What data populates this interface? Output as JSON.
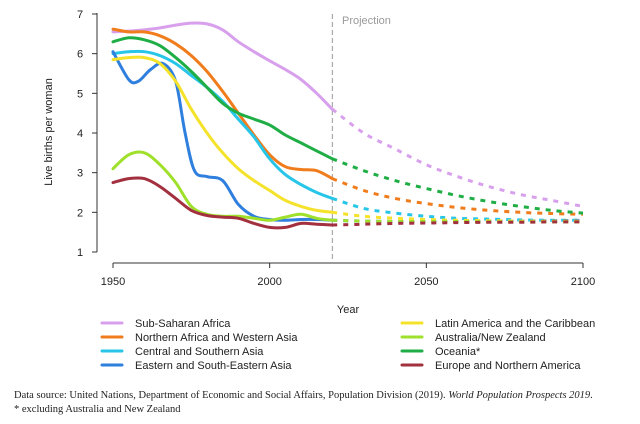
{
  "chart_data": {
    "type": "line",
    "title": "",
    "xlabel": "Year",
    "ylabel": "Live births per woman",
    "xlim": [
      1950,
      2100
    ],
    "ylim": [
      1,
      7
    ],
    "xticks": [
      1950,
      2000,
      2050,
      2100
    ],
    "yticks": [
      1,
      2,
      3,
      4,
      5,
      6,
      7
    ],
    "projection_start": 2020,
    "projection_label": "Projection",
    "series": [
      {
        "name": "Sub-Saharan Africa",
        "color": "#d8a0ec",
        "x": [
          1950,
          1955,
          1960,
          1965,
          1970,
          1975,
          1980,
          1985,
          1990,
          1995,
          2000,
          2005,
          2010,
          2015,
          2020
        ],
        "values": [
          6.55,
          6.57,
          6.6,
          6.65,
          6.72,
          6.77,
          6.75,
          6.6,
          6.3,
          6.05,
          5.82,
          5.6,
          5.35,
          5.0,
          4.6
        ],
        "proj_x": [
          2020,
          2030,
          2040,
          2050,
          2060,
          2070,
          2080,
          2090,
          2100
        ],
        "proj_values": [
          4.6,
          4.0,
          3.6,
          3.2,
          2.9,
          2.65,
          2.45,
          2.3,
          2.15
        ]
      },
      {
        "name": "Northern Africa and Western Asia",
        "color": "#f07c1c",
        "x": [
          1950,
          1955,
          1960,
          1965,
          1970,
          1975,
          1980,
          1985,
          1990,
          1995,
          2000,
          2005,
          2010,
          2015,
          2020
        ],
        "values": [
          6.62,
          6.55,
          6.55,
          6.45,
          6.25,
          5.95,
          5.55,
          5.05,
          4.5,
          3.95,
          3.45,
          3.15,
          3.08,
          3.05,
          2.85
        ],
        "proj_x": [
          2020,
          2030,
          2040,
          2050,
          2060,
          2070,
          2080,
          2090,
          2100
        ],
        "proj_values": [
          2.85,
          2.55,
          2.35,
          2.22,
          2.12,
          2.05,
          2.0,
          1.97,
          1.95
        ]
      },
      {
        "name": "Central and Southern Asia",
        "color": "#27c5e8",
        "x": [
          1950,
          1955,
          1960,
          1965,
          1970,
          1975,
          1980,
          1985,
          1990,
          1995,
          2000,
          2005,
          2010,
          2015,
          2020
        ],
        "values": [
          6.0,
          6.05,
          6.05,
          5.95,
          5.75,
          5.45,
          5.15,
          4.8,
          4.35,
          3.9,
          3.35,
          2.95,
          2.7,
          2.5,
          2.35
        ],
        "proj_x": [
          2020,
          2030,
          2040,
          2050,
          2060,
          2070,
          2080,
          2090,
          2100
        ],
        "proj_values": [
          2.35,
          2.1,
          1.98,
          1.9,
          1.85,
          1.83,
          1.81,
          1.8,
          1.8
        ]
      },
      {
        "name": "Eastern and South-Eastern Asia",
        "color": "#2f7fde",
        "x": [
          1950,
          1955,
          1958,
          1962,
          1966,
          1970,
          1973,
          1976,
          1980,
          1985,
          1990,
          1995,
          2000,
          2005,
          2010,
          2015,
          2020
        ],
        "values": [
          6.05,
          5.35,
          5.3,
          5.6,
          5.75,
          5.3,
          4.0,
          3.05,
          2.9,
          2.8,
          2.2,
          1.9,
          1.82,
          1.8,
          1.82,
          1.82,
          1.8
        ],
        "proj_x": [
          2020,
          2030,
          2040,
          2050,
          2060,
          2070,
          2080,
          2090,
          2100
        ],
        "proj_values": [
          1.8,
          1.78,
          1.77,
          1.77,
          1.77,
          1.78,
          1.78,
          1.79,
          1.8
        ]
      },
      {
        "name": "Latin America and the Caribbean",
        "color": "#f5e22a",
        "x": [
          1950,
          1955,
          1960,
          1965,
          1970,
          1975,
          1980,
          1985,
          1990,
          1995,
          2000,
          2005,
          2010,
          2015,
          2020
        ],
        "values": [
          5.85,
          5.9,
          5.9,
          5.75,
          5.3,
          4.6,
          4.0,
          3.5,
          3.1,
          2.8,
          2.55,
          2.3,
          2.15,
          2.05,
          2.0
        ],
        "proj_x": [
          2020,
          2030,
          2040,
          2050,
          2060,
          2070,
          2080,
          2090,
          2100
        ],
        "proj_values": [
          2.0,
          1.9,
          1.85,
          1.82,
          1.8,
          1.79,
          1.78,
          1.78,
          1.78
        ]
      },
      {
        "name": "Australia/New Zealand",
        "color": "#9ee02a",
        "x": [
          1950,
          1955,
          1960,
          1965,
          1970,
          1975,
          1980,
          1985,
          1990,
          1995,
          2000,
          2005,
          2010,
          2015,
          2020
        ],
        "values": [
          3.1,
          3.45,
          3.5,
          3.2,
          2.75,
          2.15,
          1.95,
          1.9,
          1.9,
          1.85,
          1.8,
          1.88,
          1.95,
          1.85,
          1.8
        ],
        "proj_x": [
          2020,
          2030,
          2040,
          2050,
          2060,
          2070,
          2080,
          2090,
          2100
        ],
        "proj_values": [
          1.8,
          1.78,
          1.77,
          1.77,
          1.77,
          1.76,
          1.76,
          1.76,
          1.76
        ]
      },
      {
        "name": "Oceania*",
        "color": "#1fae45",
        "x": [
          1950,
          1955,
          1960,
          1965,
          1970,
          1975,
          1980,
          1985,
          1990,
          1995,
          2000,
          2005,
          2010,
          2015,
          2020
        ],
        "values": [
          6.3,
          6.4,
          6.35,
          6.2,
          5.9,
          5.55,
          5.15,
          4.75,
          4.5,
          4.35,
          4.2,
          3.95,
          3.75,
          3.55,
          3.35
        ],
        "proj_x": [
          2020,
          2030,
          2040,
          2050,
          2060,
          2070,
          2080,
          2090,
          2100
        ],
        "proj_values": [
          3.35,
          3.05,
          2.8,
          2.6,
          2.42,
          2.27,
          2.15,
          2.05,
          1.98
        ]
      },
      {
        "name": "Europe and Northern America",
        "color": "#a2303f",
        "x": [
          1950,
          1955,
          1960,
          1965,
          1970,
          1975,
          1980,
          1985,
          1990,
          1995,
          2000,
          2005,
          2010,
          2015,
          2020
        ],
        "values": [
          2.75,
          2.85,
          2.85,
          2.65,
          2.35,
          2.05,
          1.92,
          1.88,
          1.85,
          1.72,
          1.62,
          1.62,
          1.72,
          1.7,
          1.68
        ],
        "proj_x": [
          2020,
          2030,
          2040,
          2050,
          2060,
          2070,
          2080,
          2090,
          2100
        ],
        "proj_values": [
          1.68,
          1.7,
          1.72,
          1.73,
          1.74,
          1.75,
          1.75,
          1.76,
          1.76
        ]
      }
    ]
  },
  "source_prefix": "Data source: United Nations, Department of Economic and Social Affairs, Population Division (2019). ",
  "source_title": "World Population Prospects 2019",
  "source_suffix": ".",
  "footnote": "* excluding Australia and New Zealand"
}
